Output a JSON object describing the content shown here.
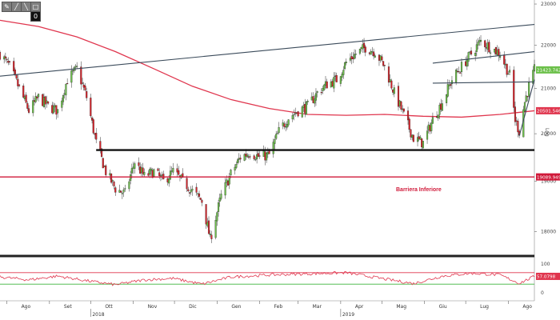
{
  "toolbar": {
    "buttons": [
      {
        "icon": "pencil-icon",
        "glyph": "✎"
      },
      {
        "icon": "draw-icon",
        "glyph": "╱"
      },
      {
        "icon": "line-icon",
        "glyph": "╲"
      },
      {
        "icon": "zoom-icon",
        "glyph": "□"
      }
    ],
    "zero_label": "0"
  },
  "colors": {
    "bull": "#6cc04a",
    "bear": "#d8232a",
    "ma": "#e0364e",
    "trend": "#3a4a5a",
    "support": "#111111",
    "barrier": "#d01a3a",
    "rsi": "#e0364e",
    "rsi_upper": "#e0364e",
    "rsi_lower": "#3cb33c",
    "price_tag": "#6cc04a",
    "ma_tag": "#e0364e"
  },
  "chart_data": {
    "type": "candlestick",
    "price_axis": {
      "ticks": [
        18000,
        19000,
        20000,
        21000,
        22000,
        23000
      ],
      "labels": [
        "18000",
        "19000",
        "20000",
        "21000",
        "22000",
        "23000"
      ],
      "min": 17500,
      "max": 23100,
      "scale_label": "Log"
    },
    "time_axis": {
      "months": [
        "Ago",
        "Set",
        "Ott",
        "Nov",
        "Dic",
        "Gen",
        "Feb",
        "Mar",
        "Apr",
        "Mag",
        "Giu",
        "Lug",
        "Ago"
      ],
      "years": [
        {
          "label": "2018",
          "month_index": 2
        },
        {
          "label": "2019",
          "month_index": 8
        }
      ],
      "start": "2018-07-27",
      "end": "2019-08-20"
    },
    "price_path": [
      [
        "2018-07-27",
        21800
      ],
      [
        "2018-08-03",
        21500
      ],
      [
        "2018-08-10",
        21000
      ],
      [
        "2018-08-17",
        20500
      ],
      [
        "2018-08-24",
        20800
      ],
      [
        "2018-08-31",
        20600
      ],
      [
        "2018-09-07",
        20500
      ],
      [
        "2018-09-14",
        21200
      ],
      [
        "2018-09-21",
        21450
      ],
      [
        "2018-09-28",
        20800
      ],
      [
        "2018-10-05",
        19800
      ],
      [
        "2018-10-12",
        19200
      ],
      [
        "2018-10-19",
        18850
      ],
      [
        "2018-10-26",
        18750
      ],
      [
        "2018-11-02",
        19400
      ],
      [
        "2018-11-09",
        19100
      ],
      [
        "2018-11-16",
        19200
      ],
      [
        "2018-11-23",
        19000
      ],
      [
        "2018-11-30",
        19200
      ],
      [
        "2018-12-07",
        19000
      ],
      [
        "2018-12-14",
        18800
      ],
      [
        "2018-12-21",
        18600
      ],
      [
        "2018-12-27",
        17850
      ],
      [
        "2019-01-04",
        18700
      ],
      [
        "2019-01-11",
        19150
      ],
      [
        "2019-01-18",
        19500
      ],
      [
        "2019-01-25",
        19600
      ],
      [
        "2019-02-01",
        19500
      ],
      [
        "2019-02-08",
        19550
      ],
      [
        "2019-02-15",
        20050
      ],
      [
        "2019-02-22",
        20350
      ],
      [
        "2019-03-01",
        20500
      ],
      [
        "2019-03-08",
        20600
      ],
      [
        "2019-03-15",
        20900
      ],
      [
        "2019-03-22",
        21100
      ],
      [
        "2019-03-29",
        21200
      ],
      [
        "2019-04-05",
        21600
      ],
      [
        "2019-04-12",
        21800
      ],
      [
        "2019-04-19",
        21950
      ],
      [
        "2019-04-26",
        21850
      ],
      [
        "2019-05-03",
        21500
      ],
      [
        "2019-05-10",
        20900
      ],
      [
        "2019-05-17",
        20400
      ],
      [
        "2019-05-24",
        19900
      ],
      [
        "2019-05-31",
        19800
      ],
      [
        "2019-06-07",
        20300
      ],
      [
        "2019-06-14",
        20700
      ],
      [
        "2019-06-21",
        21200
      ],
      [
        "2019-06-28",
        21500
      ],
      [
        "2019-07-05",
        21800
      ],
      [
        "2019-07-12",
        22100
      ],
      [
        "2019-07-19",
        21950
      ],
      [
        "2019-07-26",
        21800
      ],
      [
        "2019-08-02",
        21300
      ],
      [
        "2019-08-06",
        20300
      ],
      [
        "2019-08-09",
        20050
      ],
      [
        "2019-08-13",
        20700
      ],
      [
        "2019-08-16",
        21050
      ],
      [
        "2019-08-20",
        21423
      ]
    ],
    "moving_average": {
      "name": "MA",
      "points": [
        [
          "2018-07-27",
          22600
        ],
        [
          "2018-08-24",
          22450
        ],
        [
          "2018-09-21",
          22200
        ],
        [
          "2018-10-19",
          21850
        ],
        [
          "2018-11-16",
          21450
        ],
        [
          "2018-12-14",
          21050
        ],
        [
          "2019-01-11",
          20750
        ],
        [
          "2019-02-08",
          20550
        ],
        [
          "2019-03-08",
          20420
        ],
        [
          "2019-04-05",
          20400
        ],
        [
          "2019-05-03",
          20420
        ],
        [
          "2019-05-31",
          20380
        ],
        [
          "2019-06-28",
          20360
        ],
        [
          "2019-07-26",
          20420
        ],
        [
          "2019-08-20",
          20501
        ]
      ]
    },
    "trend_lines": [
      {
        "from": [
          "2018-07-27",
          21280
        ],
        "to": [
          "2019-08-20",
          22500
        ]
      },
      {
        "from": [
          "2019-06-07",
          21580
        ],
        "to": [
          "2019-08-20",
          21850
        ]
      },
      {
        "from": [
          "2019-06-07",
          21120
        ],
        "to": [
          "2019-08-20",
          21150
        ]
      },
      {
        "from": [
          "2019-08-09",
          19950
        ],
        "to": [
          "2019-08-20",
          21200
        ]
      }
    ],
    "support_line": {
      "from": "2018-10-05",
      "to": "2019-08-20",
      "value": 19650
    },
    "barrier_line": {
      "value": 19089.9492,
      "label": "19089.9492",
      "annotation": "Barriera Inferiore"
    },
    "price_tags": [
      {
        "label": "21423.7422",
        "value": 21423.7422,
        "kind": "price"
      },
      {
        "label": "20501.5469",
        "value": 20501.5469,
        "kind": "ma"
      }
    ],
    "rsi": {
      "ticks": [
        0,
        100
      ],
      "labels": [
        "0",
        "100"
      ],
      "upper": 70,
      "lower": 30,
      "last": 57.0798,
      "last_label": "57.0798",
      "points": [
        [
          "2018-07-27",
          55
        ],
        [
          "2018-08-17",
          45
        ],
        [
          "2018-09-07",
          58
        ],
        [
          "2018-09-28",
          42
        ],
        [
          "2018-10-19",
          28
        ],
        [
          "2018-11-09",
          45
        ],
        [
          "2018-11-30",
          50
        ],
        [
          "2018-12-21",
          30
        ],
        [
          "2019-01-11",
          55
        ],
        [
          "2019-02-08",
          62
        ],
        [
          "2019-03-08",
          66
        ],
        [
          "2019-04-05",
          70
        ],
        [
          "2019-05-03",
          48
        ],
        [
          "2019-05-24",
          32
        ],
        [
          "2019-06-14",
          58
        ],
        [
          "2019-07-05",
          68
        ],
        [
          "2019-07-26",
          62
        ],
        [
          "2019-08-09",
          33
        ],
        [
          "2019-08-20",
          57
        ]
      ]
    }
  }
}
